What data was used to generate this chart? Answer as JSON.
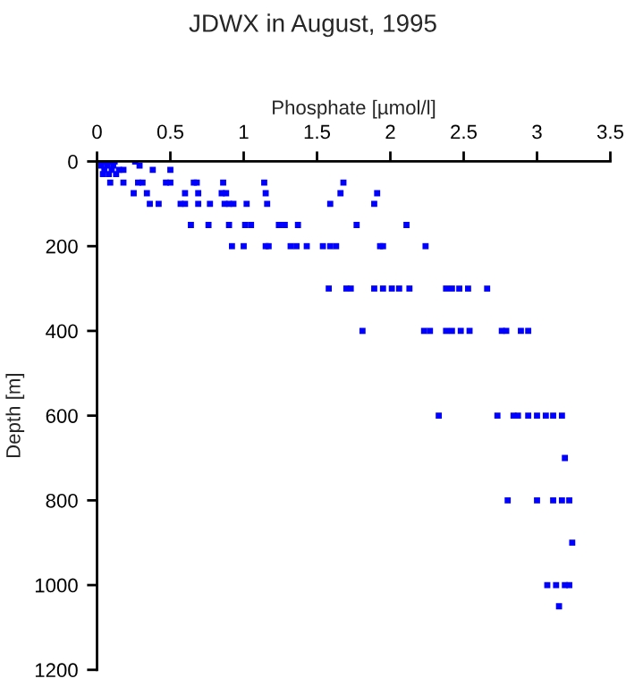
{
  "chart_data": {
    "type": "scatter",
    "title": "JDWX in August, 1995",
    "xlabel": "Phosphate [µmol/l]",
    "ylabel": "Depth [m]",
    "xlim": [
      0,
      3.5
    ],
    "xticks": [
      0,
      {
        "value": 0.5,
        "label": "0.5"
      },
      1,
      {
        "value": 1.5,
        "label": "1.5"
      },
      2,
      {
        "value": 2.5,
        "label": "2.5"
      },
      3,
      {
        "value": 3.5,
        "label": "3.5"
      }
    ],
    "ylim": [
      1200,
      0
    ],
    "yticks": [
      0,
      200,
      400,
      600,
      800,
      1000,
      1200
    ],
    "grid": false,
    "marker": "square",
    "series": [
      {
        "color": "#0000ff",
        "x": [
          0.03,
          0.06,
          0.09,
          0.12,
          0.26,
          0.03,
          0.07,
          0.11,
          0.29,
          0.05,
          0.1,
          0.15,
          0.18,
          0.38,
          0.5,
          0.04,
          0.08,
          0.13,
          0.09,
          0.18,
          0.28,
          0.31,
          0.47,
          0.5,
          0.66,
          0.68,
          0.86,
          1.14,
          1.68,
          0.25,
          0.34,
          0.6,
          0.69,
          0.85,
          0.88,
          1.15,
          1.66,
          1.91,
          0.36,
          0.42,
          0.57,
          0.6,
          0.69,
          0.77,
          0.87,
          0.9,
          0.93,
          1.02,
          1.16,
          1.59,
          1.89,
          0.64,
          0.76,
          0.9,
          1.01,
          1.05,
          1.24,
          1.28,
          1.37,
          1.77,
          2.11,
          0.92,
          1.0,
          1.15,
          1.17,
          1.32,
          1.36,
          1.43,
          1.54,
          1.59,
          1.63,
          1.93,
          1.95,
          2.24,
          1.58,
          1.7,
          1.73,
          1.89,
          1.95,
          2.01,
          2.06,
          2.13,
          2.38,
          2.42,
          2.47,
          2.53,
          2.66,
          1.81,
          2.23,
          2.27,
          2.38,
          2.42,
          2.48,
          2.54,
          2.76,
          2.79,
          2.89,
          2.94,
          2.33,
          2.73,
          2.84,
          2.87,
          2.94,
          3.0,
          3.06,
          3.11,
          3.17,
          3.19,
          2.8,
          3.0,
          3.11,
          3.17,
          3.22,
          3.24,
          3.07,
          3.13,
          3.19,
          3.22,
          3.15
        ],
        "values": [
          0,
          0,
          0,
          0,
          0,
          10,
          10,
          10,
          10,
          20,
          20,
          20,
          20,
          20,
          20,
          30,
          30,
          30,
          50,
          50,
          50,
          50,
          50,
          50,
          50,
          50,
          50,
          50,
          50,
          75,
          75,
          75,
          75,
          75,
          75,
          75,
          75,
          75,
          100,
          100,
          100,
          100,
          100,
          100,
          100,
          100,
          100,
          100,
          100,
          100,
          100,
          150,
          150,
          150,
          150,
          150,
          150,
          150,
          150,
          150,
          150,
          200,
          200,
          200,
          200,
          200,
          200,
          200,
          200,
          200,
          200,
          200,
          200,
          200,
          300,
          300,
          300,
          300,
          300,
          300,
          300,
          300,
          300,
          300,
          300,
          300,
          300,
          400,
          400,
          400,
          400,
          400,
          400,
          400,
          400,
          400,
          400,
          400,
          600,
          600,
          600,
          600,
          600,
          600,
          600,
          600,
          600,
          700,
          800,
          800,
          800,
          800,
          800,
          900,
          1000,
          1000,
          1000,
          1000,
          1050
        ]
      }
    ]
  }
}
